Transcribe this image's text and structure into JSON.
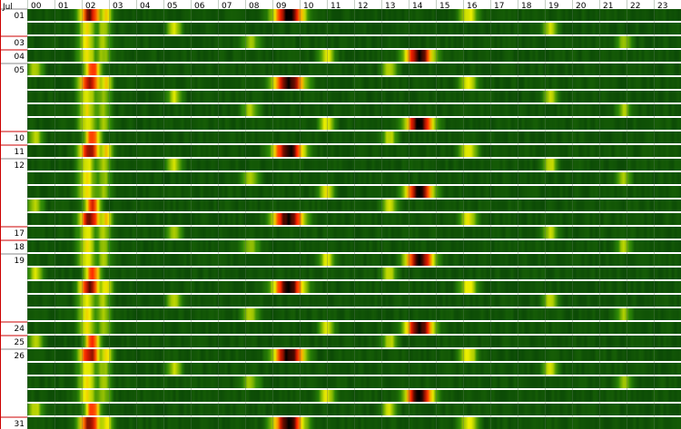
{
  "chart_data": {
    "type": "heatmap",
    "month_label": "Jul",
    "x_tick_labels": [
      "00",
      "01",
      "02",
      "03",
      "04",
      "05",
      "06",
      "07",
      "08",
      "09",
      "10",
      "11",
      "12",
      "13",
      "14",
      "15",
      "16",
      "17",
      "18",
      "19",
      "20",
      "21",
      "22",
      "23"
    ],
    "days": [
      "01",
      "02",
      "03",
      "04",
      "05",
      "06",
      "07",
      "08",
      "09",
      "10",
      "11",
      "12",
      "13",
      "14",
      "15",
      "16",
      "17",
      "18",
      "19",
      "20",
      "21",
      "22",
      "23",
      "24",
      "25",
      "26",
      "27",
      "28",
      "29",
      "30",
      "31"
    ],
    "labeled_days": [
      "01",
      "03",
      "04",
      "05",
      "10",
      "11",
      "12",
      "17",
      "18",
      "19",
      "24",
      "25",
      "26",
      "31"
    ],
    "weekend_days": [
      "03",
      "04",
      "10",
      "11",
      "17",
      "18",
      "24",
      "25",
      "31"
    ],
    "color_scale": {
      "low": "#064006",
      "mid1": "#2e8a06",
      "mid2": "#f0f000",
      "mid3": "#ff2000",
      "high": "#000000"
    },
    "hotspot_cycle": [
      [
        [
          2.3,
          0.7,
          0.9
        ],
        [
          2.9,
          0.4,
          0.6
        ],
        [
          9.6,
          1.0,
          1.0
        ],
        [
          16.2,
          0.6,
          0.55
        ]
      ],
      [
        [
          2.2,
          0.6,
          0.55
        ],
        [
          2.8,
          0.5,
          0.45
        ],
        [
          5.4,
          0.5,
          0.5
        ],
        [
          19.2,
          0.5,
          0.5
        ]
      ],
      [
        [
          2.2,
          0.6,
          0.55
        ],
        [
          2.8,
          0.5,
          0.45
        ],
        [
          8.2,
          0.6,
          0.45
        ],
        [
          21.9,
          0.5,
          0.45
        ]
      ],
      [
        [
          2.2,
          0.6,
          0.55
        ],
        [
          2.8,
          0.5,
          0.45
        ],
        [
          11.0,
          0.5,
          0.55
        ],
        [
          14.4,
          0.9,
          1.0
        ]
      ],
      [
        [
          0.3,
          0.5,
          0.5
        ],
        [
          2.4,
          0.5,
          0.8
        ],
        [
          13.3,
          0.5,
          0.5
        ]
      ]
    ]
  }
}
